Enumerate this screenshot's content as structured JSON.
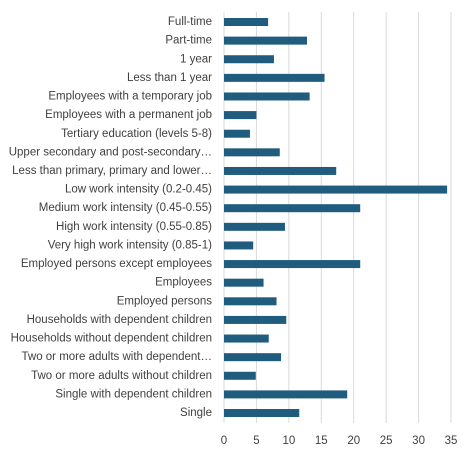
{
  "chart_data": {
    "type": "bar",
    "orientation": "horizontal",
    "categories": [
      "Full-time",
      "Part-time",
      "1 year",
      "Less than 1 year",
      "Employees with a temporary job",
      "Employees with a permanent job",
      "Tertiary education (levels 5-8)",
      "Upper secondary and post-secondary…",
      "Less than primary, primary and lower…",
      "Low work intensity (0.2-0.45)",
      "Medium work intensity (0.45-0.55)",
      "High work intensity (0.55-0.85)",
      "Very high work intensity (0.85-1)",
      "Employed persons except employees",
      "Employees",
      "Employed persons",
      "Households with dependent children",
      "Households without dependent children",
      "Two or more adults with dependent…",
      "Two or more adults without children",
      "Single with dependent children",
      "Single"
    ],
    "values": [
      6.8,
      12.8,
      7.7,
      15.5,
      13.2,
      5.0,
      4.0,
      8.6,
      17.3,
      34.4,
      21.0,
      9.4,
      4.5,
      21.0,
      6.1,
      8.1,
      9.6,
      6.9,
      8.8,
      4.9,
      19.0,
      11.6
    ],
    "xlim": [
      0,
      35
    ],
    "xticks": [
      "0",
      "5",
      "10",
      "15",
      "20",
      "25",
      "30",
      "35"
    ],
    "grid": "vertical",
    "legend": "none",
    "bar_color": "#1f5c7e",
    "title": "",
    "xlabel": "",
    "ylabel": ""
  }
}
